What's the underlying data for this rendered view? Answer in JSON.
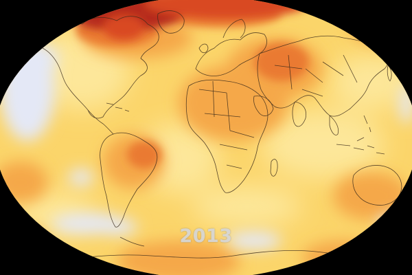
{
  "year": "2013",
  "colors": {
    "background": "#000000",
    "base_warm": "#fbd56a",
    "light_warm": "#fde79a",
    "orange": "#f5a84a",
    "deep_orange": "#ea7a30",
    "red": "#d94a24",
    "dark_red": "#b62a1a",
    "cool": "#e4e8f6",
    "coast_line": "#3a2a1a",
    "year_text": "#d6d6d6"
  }
}
